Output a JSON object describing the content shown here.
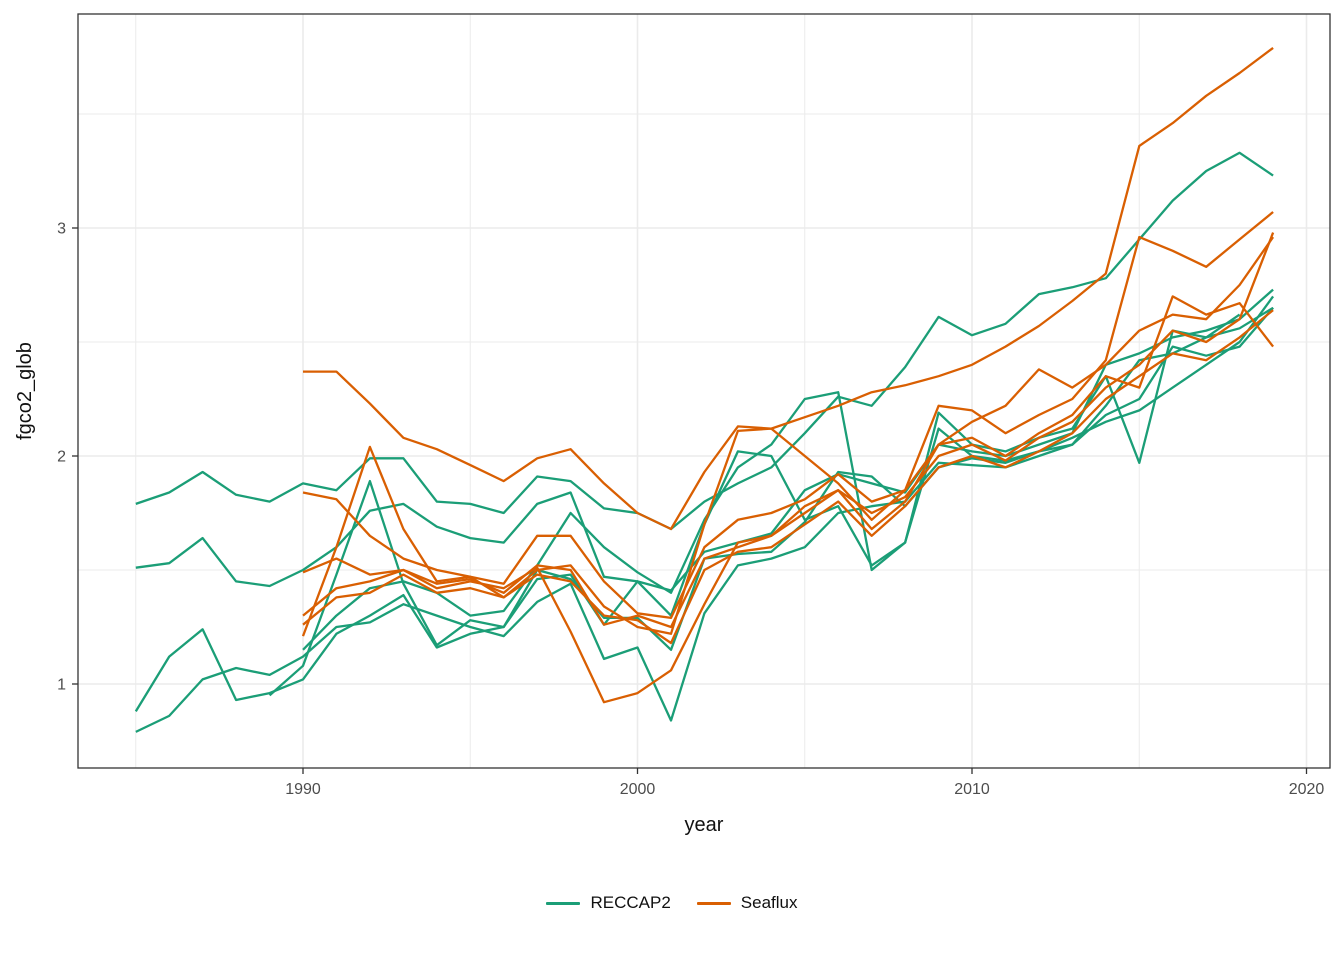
{
  "figure": {
    "kind": "ggplot-line-chart",
    "background": "#ffffff",
    "panel_border_color": "#343434",
    "grid_color": "#ebebeb",
    "tick_color": "#333333",
    "tick_label_color": "#4d4d4d"
  },
  "axes": {
    "x": {
      "label": "year",
      "major_ticks": [
        1990,
        2000,
        2010,
        2020
      ],
      "minor_ticks": [
        1985,
        1995,
        2005,
        2015
      ],
      "domain": [
        1983.3,
        2020.7
      ]
    },
    "y": {
      "label": "fgco2_glob",
      "major_ticks": [
        1,
        2,
        3
      ],
      "minor_ticks": [
        1.5,
        2.5,
        3.5
      ],
      "domain": [
        0.63,
        3.94
      ]
    }
  },
  "legend": {
    "items": [
      {
        "label": "RECCAP2",
        "color": "#1B9E77"
      },
      {
        "label": "Seaflux",
        "color": "#D95F02"
      }
    ]
  },
  "chart_data": {
    "type": "line",
    "title": "",
    "xlabel": "year",
    "ylabel": "fgco2_glob",
    "xlim": [
      1983.3,
      2020.7
    ],
    "ylim": [
      0.63,
      3.94
    ],
    "grid": true,
    "legend_position": "bottom",
    "groups": {
      "RECCAP2": "#1B9E77",
      "Seaflux": "#D95F02"
    },
    "series": [
      {
        "name": "RECCAP2-1",
        "group": "RECCAP2",
        "start_year": 1985,
        "values": [
          1.79,
          1.84,
          1.93,
          1.83,
          1.8,
          1.88,
          1.85,
          1.99,
          1.99,
          1.8,
          1.79,
          1.75,
          1.91,
          1.89,
          1.77,
          1.75,
          1.68,
          1.8,
          1.88,
          1.95,
          2.1,
          2.26,
          2.22,
          2.39,
          2.61,
          2.53,
          2.58,
          2.71,
          2.74,
          2.78,
          2.95,
          3.12,
          3.25,
          3.33,
          3.23
        ]
      },
      {
        "name": "RECCAP2-2",
        "group": "RECCAP2",
        "start_year": 1985,
        "values": [
          1.51,
          1.53,
          1.64,
          1.45,
          1.43,
          1.5,
          1.6,
          1.76,
          1.79,
          1.69,
          1.64,
          1.62,
          1.79,
          1.84,
          1.47,
          1.45,
          1.41,
          1.58,
          1.62,
          1.66,
          1.85,
          1.92,
          1.88,
          1.84,
          2.05,
          2.02,
          2.0,
          2.05,
          2.1,
          2.4,
          2.45,
          2.52,
          2.55,
          2.6,
          2.73
        ]
      },
      {
        "name": "RECCAP2-3",
        "group": "RECCAP2",
        "start_year": 1985,
        "values": [
          0.88,
          1.12,
          1.24,
          0.93,
          0.96,
          1.02,
          1.22,
          1.3,
          1.39,
          1.16,
          1.22,
          1.25,
          1.5,
          1.46,
          1.29,
          1.29,
          1.15,
          1.55,
          1.57,
          1.58,
          1.71,
          1.93,
          1.91,
          1.78,
          1.95,
          1.99,
          1.97,
          2.02,
          2.08,
          2.15,
          2.2,
          2.3,
          2.4,
          2.5,
          2.7
        ]
      },
      {
        "name": "RECCAP2-4",
        "group": "RECCAP2",
        "start_year": 1985,
        "values": [
          0.79,
          0.86,
          1.02,
          1.07,
          1.04,
          1.12,
          1.25,
          1.27,
          1.35,
          1.3,
          1.25,
          1.21,
          1.36,
          1.44,
          1.11,
          1.16,
          0.84,
          1.31,
          1.52,
          1.55,
          1.6,
          1.75,
          1.78,
          1.8,
          1.97,
          1.96,
          1.95,
          2.0,
          2.05,
          2.18,
          2.25,
          2.48,
          2.44,
          2.48,
          2.65
        ]
      },
      {
        "name": "RECCAP2-5",
        "group": "RECCAP2",
        "start_year": 1989,
        "values": [
          0.95,
          1.08,
          1.48,
          1.89,
          1.44,
          1.17,
          1.28,
          1.25,
          1.46,
          1.48,
          1.26,
          1.45,
          1.3,
          1.7,
          2.02,
          2.0,
          1.72,
          1.78,
          1.52,
          1.62,
          2.12,
          2.0,
          1.98,
          2.02,
          2.05,
          2.22,
          2.42,
          2.45,
          2.52,
          2.62
        ]
      },
      {
        "name": "RECCAP2-6",
        "group": "RECCAP2",
        "start_year": 1990,
        "values": [
          1.15,
          1.3,
          1.42,
          1.45,
          1.4,
          1.3,
          1.32,
          1.52,
          1.75,
          1.6,
          1.49,
          1.4,
          1.72,
          1.95,
          2.05,
          2.25,
          2.28,
          1.5,
          1.62,
          2.19,
          2.05,
          2.02,
          2.08,
          2.12,
          2.35,
          1.97,
          2.55,
          2.52,
          2.56,
          2.65
        ]
      },
      {
        "name": "Seaflux-1",
        "group": "Seaflux",
        "start_year": 1990,
        "values": [
          2.37,
          2.37,
          2.23,
          2.08,
          2.03,
          1.96,
          1.89,
          1.99,
          2.03,
          1.88,
          1.75,
          1.68,
          1.93,
          2.13,
          2.12,
          2.17,
          2.22,
          2.28,
          2.31,
          2.35,
          2.4,
          2.48,
          2.57,
          2.68,
          2.8,
          3.36,
          3.46,
          3.58,
          3.68,
          3.79
        ]
      },
      {
        "name": "Seaflux-2",
        "group": "Seaflux",
        "start_year": 1990,
        "values": [
          1.84,
          1.81,
          1.65,
          1.55,
          1.5,
          1.47,
          1.44,
          1.65,
          1.65,
          1.45,
          1.31,
          1.29,
          1.6,
          1.72,
          1.75,
          1.81,
          1.92,
          1.8,
          1.85,
          2.22,
          2.2,
          2.1,
          2.18,
          2.25,
          2.42,
          2.96,
          2.9,
          2.83,
          2.95,
          3.07
        ]
      },
      {
        "name": "Seaflux-3",
        "group": "Seaflux",
        "start_year": 1990,
        "values": [
          1.49,
          1.55,
          1.48,
          1.5,
          1.42,
          1.45,
          1.42,
          1.51,
          1.23,
          0.92,
          0.96,
          1.06,
          1.35,
          1.62,
          1.65,
          1.75,
          1.85,
          1.68,
          1.8,
          2.05,
          2.08,
          2.0,
          2.1,
          2.18,
          2.35,
          2.3,
          2.7,
          2.62,
          2.67,
          2.48
        ]
      },
      {
        "name": "Seaflux-4",
        "group": "Seaflux",
        "start_year": 1990,
        "values": [
          1.21,
          1.6,
          2.04,
          1.68,
          1.45,
          1.47,
          1.38,
          1.5,
          1.52,
          1.34,
          1.25,
          1.22,
          1.7,
          2.11,
          2.12,
          2.0,
          1.88,
          1.72,
          1.85,
          2.05,
          2.15,
          2.22,
          2.38,
          2.3,
          2.4,
          2.55,
          2.62,
          2.6,
          2.75,
          2.96
        ]
      },
      {
        "name": "Seaflux-5",
        "group": "Seaflux",
        "start_year": 1990,
        "values": [
          1.3,
          1.42,
          1.45,
          1.5,
          1.44,
          1.46,
          1.4,
          1.52,
          1.5,
          1.26,
          1.3,
          1.25,
          1.55,
          1.6,
          1.65,
          1.78,
          1.85,
          1.75,
          1.82,
          2.0,
          2.05,
          1.98,
          2.08,
          2.15,
          2.3,
          2.4,
          2.55,
          2.5,
          2.6,
          2.98
        ]
      },
      {
        "name": "Seaflux-6",
        "group": "Seaflux",
        "start_year": 1990,
        "values": [
          1.26,
          1.38,
          1.4,
          1.48,
          1.4,
          1.42,
          1.38,
          1.48,
          1.45,
          1.3,
          1.28,
          1.18,
          1.5,
          1.58,
          1.6,
          1.7,
          1.8,
          1.65,
          1.78,
          1.95,
          2.0,
          1.95,
          2.02,
          2.1,
          2.25,
          2.35,
          2.45,
          2.42,
          2.52,
          2.64
        ]
      }
    ]
  }
}
